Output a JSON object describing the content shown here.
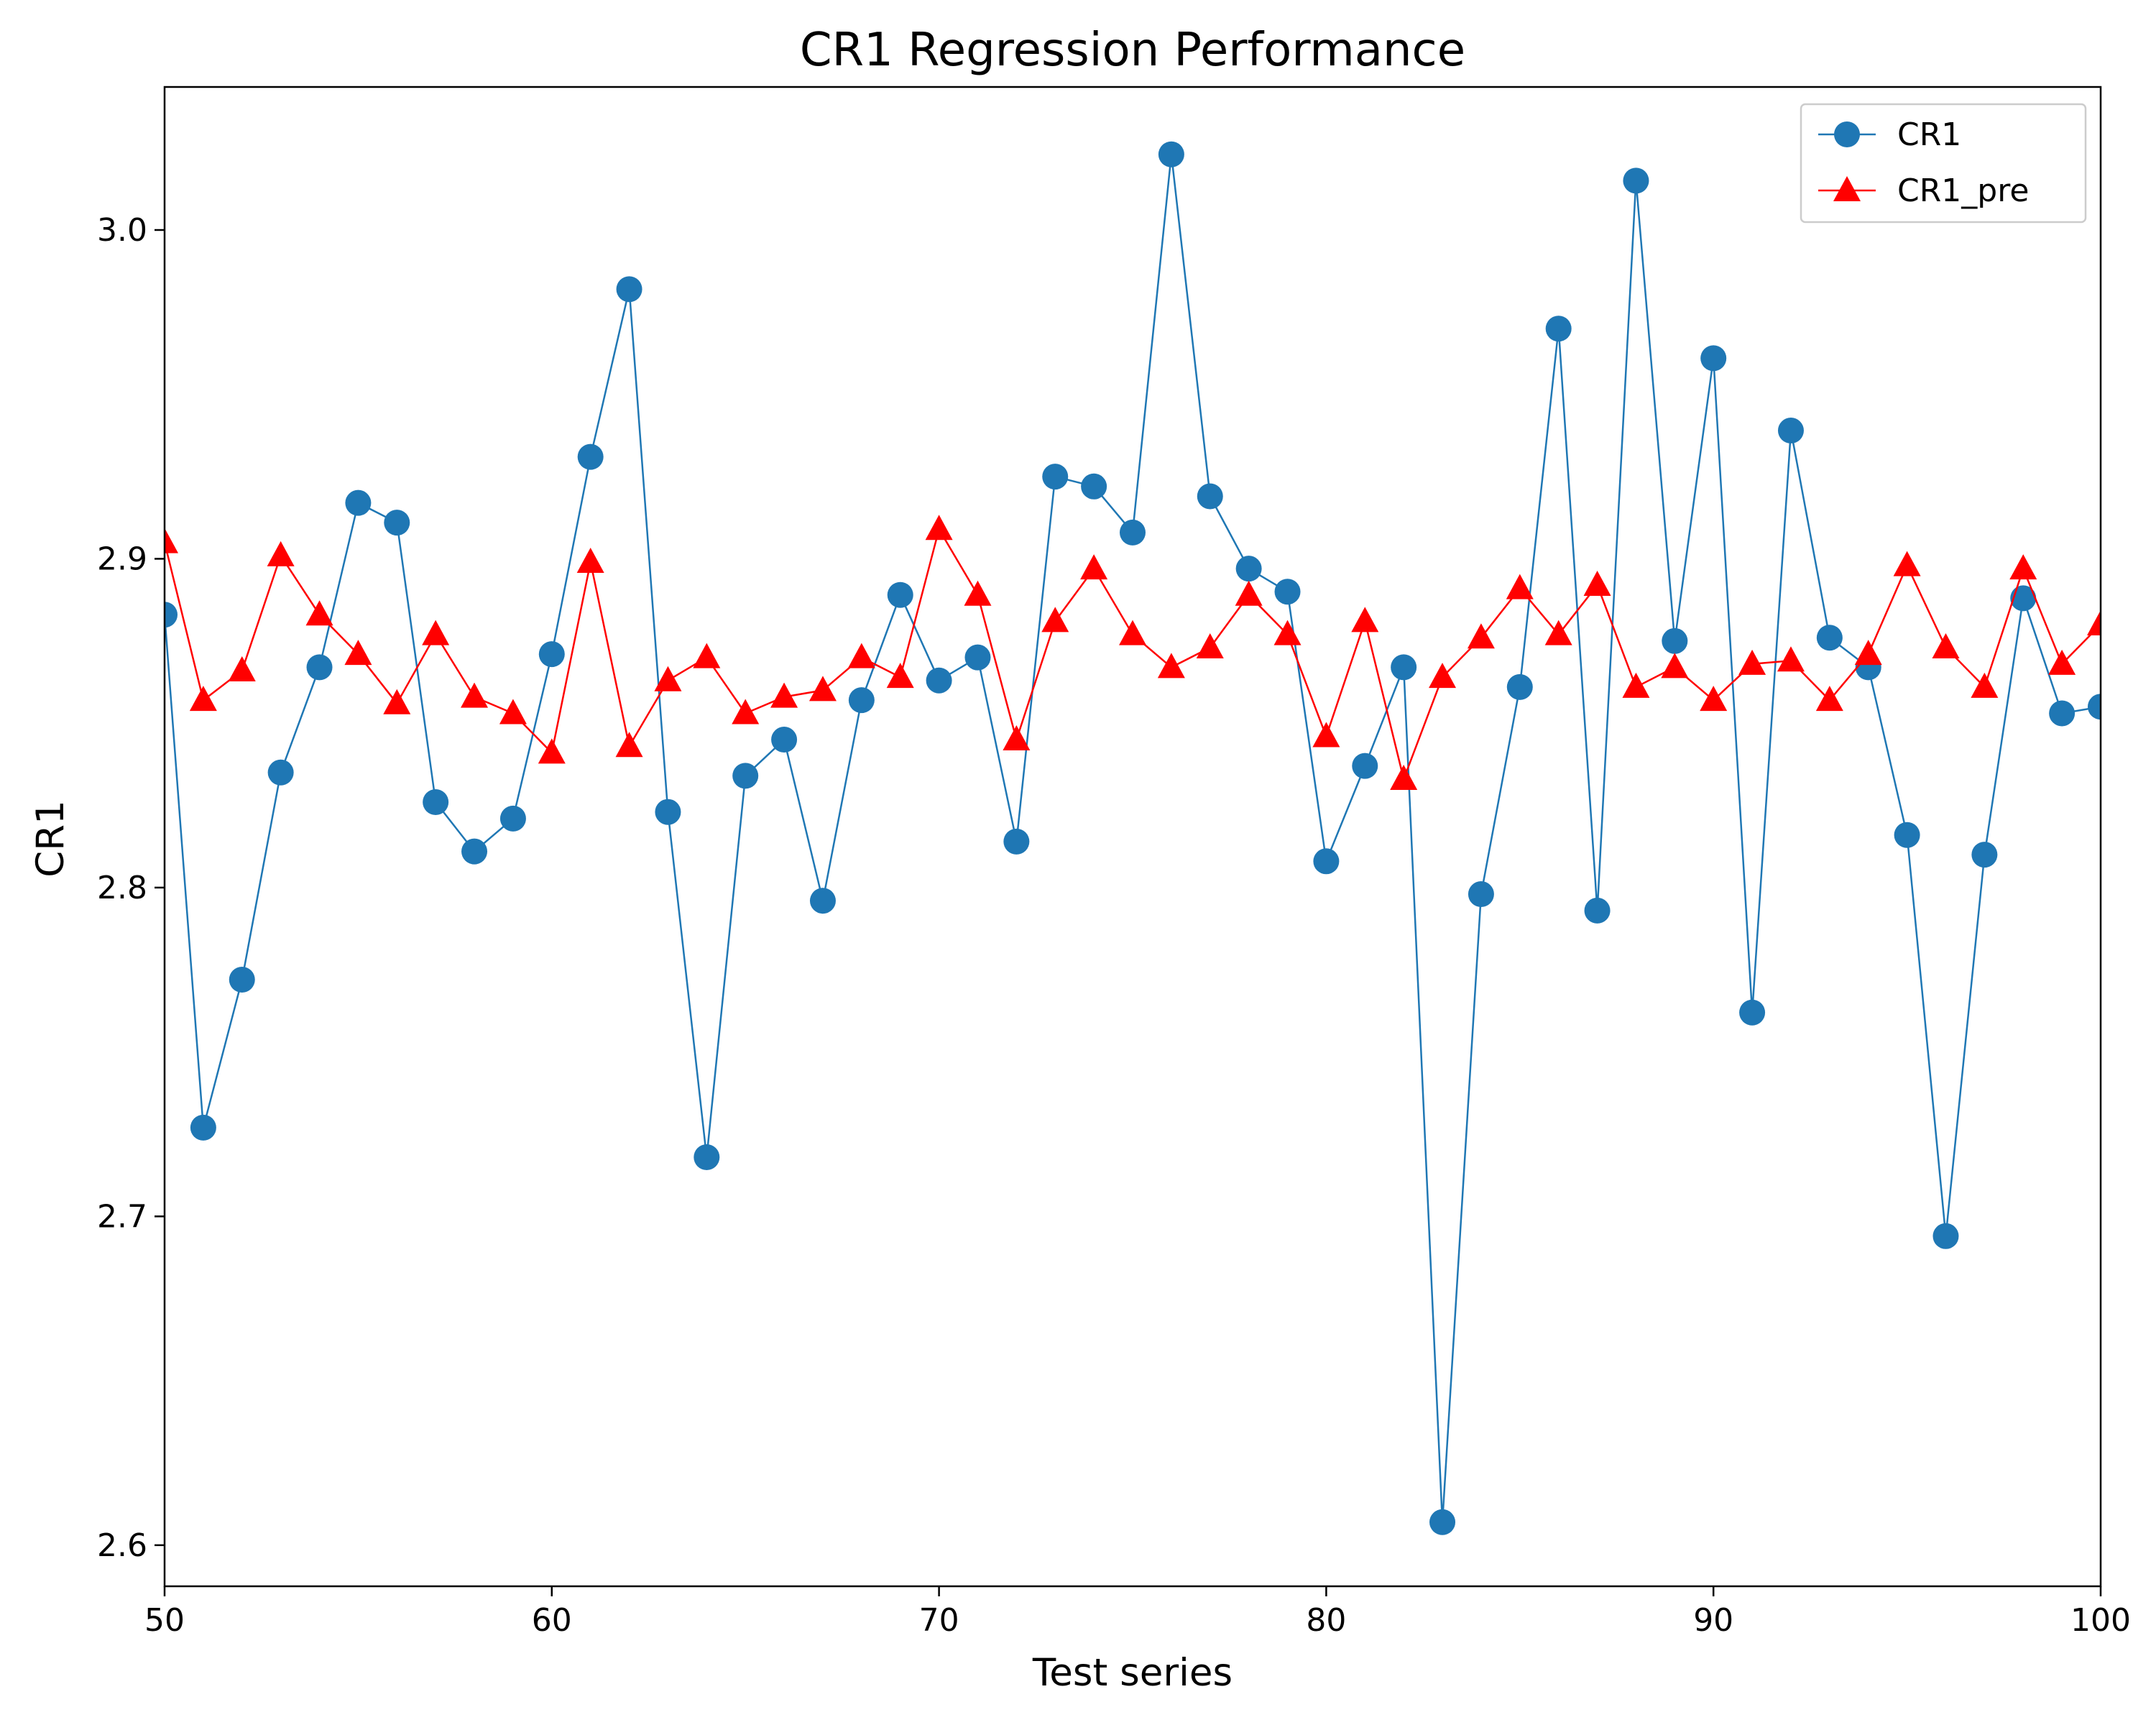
{
  "chart_data": {
    "type": "line",
    "title": "CR1 Regression Performance",
    "xlabel": "Test series",
    "ylabel": "CR1",
    "xlim": [
      50,
      100
    ],
    "ylim": [
      2.5875,
      3.0435
    ],
    "xticks": [
      50,
      60,
      70,
      80,
      90,
      100
    ],
    "yticks": [
      2.6,
      2.7,
      2.8,
      2.9,
      3.0
    ],
    "xtick_labels": [
      "50",
      "60",
      "70",
      "80",
      "90",
      "100"
    ],
    "ytick_labels": [
      "2.6",
      "2.7",
      "2.8",
      "2.9",
      "3.0"
    ],
    "grid": false,
    "legend_position": "top-right",
    "x": [
      50,
      51,
      52,
      53,
      54,
      55,
      56,
      57,
      58,
      59,
      60,
      61,
      62,
      63,
      64,
      65,
      66,
      67,
      68,
      69,
      70,
      71,
      72,
      73,
      74,
      75,
      76,
      77,
      78,
      79,
      80,
      81,
      82,
      83,
      84,
      85,
      86,
      87,
      88,
      89,
      90,
      91,
      92,
      93,
      94,
      95,
      96,
      97,
      98,
      99,
      100
    ],
    "series": [
      {
        "name": "CR1",
        "color": "#1f77b4",
        "marker": "circle",
        "values": [
          2.883,
          2.727,
          2.772,
          2.835,
          2.867,
          2.917,
          2.911,
          2.826,
          2.811,
          2.821,
          2.871,
          2.931,
          2.982,
          2.823,
          2.718,
          2.834,
          2.845,
          2.796,
          2.857,
          2.889,
          2.863,
          2.87,
          2.814,
          2.925,
          2.922,
          2.908,
          3.023,
          2.919,
          2.897,
          2.89,
          2.808,
          2.837,
          2.867,
          2.607,
          2.798,
          2.861,
          2.97,
          2.793,
          3.015,
          2.875,
          2.961,
          2.762,
          2.939,
          2.876,
          2.867,
          2.816,
          2.694,
          2.81,
          2.888,
          2.853,
          2.855
        ]
      },
      {
        "name": "CR1_pre",
        "color": "#ff0000",
        "marker": "triangle",
        "values": [
          2.905,
          2.857,
          2.866,
          2.901,
          2.883,
          2.871,
          2.856,
          2.877,
          2.858,
          2.853,
          2.841,
          2.899,
          2.843,
          2.863,
          2.87,
          2.853,
          2.858,
          2.86,
          2.87,
          2.864,
          2.909,
          2.889,
          2.845,
          2.881,
          2.897,
          2.877,
          2.867,
          2.873,
          2.889,
          2.877,
          2.846,
          2.881,
          2.833,
          2.864,
          2.876,
          2.891,
          2.877,
          2.892,
          2.861,
          2.867,
          2.857,
          2.868,
          2.869,
          2.857,
          2.871,
          2.898,
          2.873,
          2.861,
          2.897,
          2.868,
          2.88
        ]
      }
    ]
  }
}
